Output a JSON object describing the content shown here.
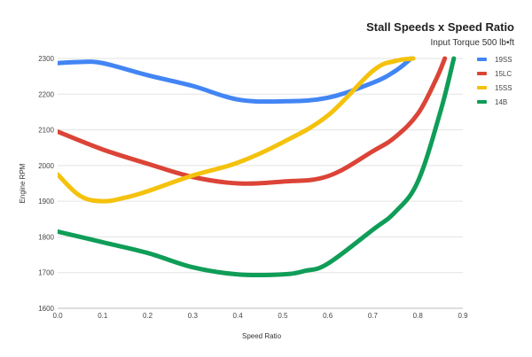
{
  "chart_data": {
    "type": "line",
    "title": "Stall Speeds x Speed Ratio",
    "subtitle": "Input Torque 500 lb•ft",
    "xlabel": "Speed Ratio",
    "ylabel": "Engine RPM",
    "xlim": [
      0,
      0.9
    ],
    "ylim": [
      1600,
      2300
    ],
    "xticks": [
      "0.0",
      "0.1",
      "0.2",
      "0.3",
      "0.4",
      "0.5",
      "0.6",
      "0.7",
      "0.8",
      "0.9"
    ],
    "yticks": [
      "1600",
      "1700",
      "1800",
      "1900",
      "2000",
      "2100",
      "2200",
      "2300"
    ],
    "grid": true,
    "legend_position": "right",
    "series": [
      {
        "name": "19SS",
        "color": "#4285f4",
        "x": [
          0.0,
          0.05,
          0.1,
          0.2,
          0.3,
          0.4,
          0.5,
          0.6,
          0.7,
          0.75,
          0.785
        ],
        "y": [
          2287,
          2290,
          2287,
          2253,
          2223,
          2185,
          2180,
          2190,
          2232,
          2265,
          2300
        ]
      },
      {
        "name": "15LC",
        "color": "#db4437",
        "x": [
          0.0,
          0.1,
          0.2,
          0.3,
          0.4,
          0.5,
          0.6,
          0.7,
          0.75,
          0.8,
          0.84,
          0.86
        ],
        "y": [
          2095,
          2045,
          2005,
          1968,
          1950,
          1955,
          1970,
          2040,
          2080,
          2145,
          2240,
          2300
        ]
      },
      {
        "name": "15SS",
        "color": "#f4c20d",
        "x": [
          0.0,
          0.05,
          0.1,
          0.15,
          0.2,
          0.3,
          0.4,
          0.5,
          0.6,
          0.7,
          0.75,
          0.79
        ],
        "y": [
          1975,
          1915,
          1900,
          1910,
          1928,
          1972,
          2008,
          2065,
          2140,
          2265,
          2293,
          2300
        ]
      },
      {
        "name": "14B",
        "color": "#0f9d58",
        "x": [
          0.0,
          0.1,
          0.2,
          0.3,
          0.4,
          0.5,
          0.55,
          0.6,
          0.7,
          0.75,
          0.8,
          0.85,
          0.88
        ],
        "y": [
          1815,
          1785,
          1755,
          1715,
          1695,
          1695,
          1705,
          1725,
          1820,
          1870,
          1955,
          2150,
          2300
        ]
      }
    ]
  }
}
